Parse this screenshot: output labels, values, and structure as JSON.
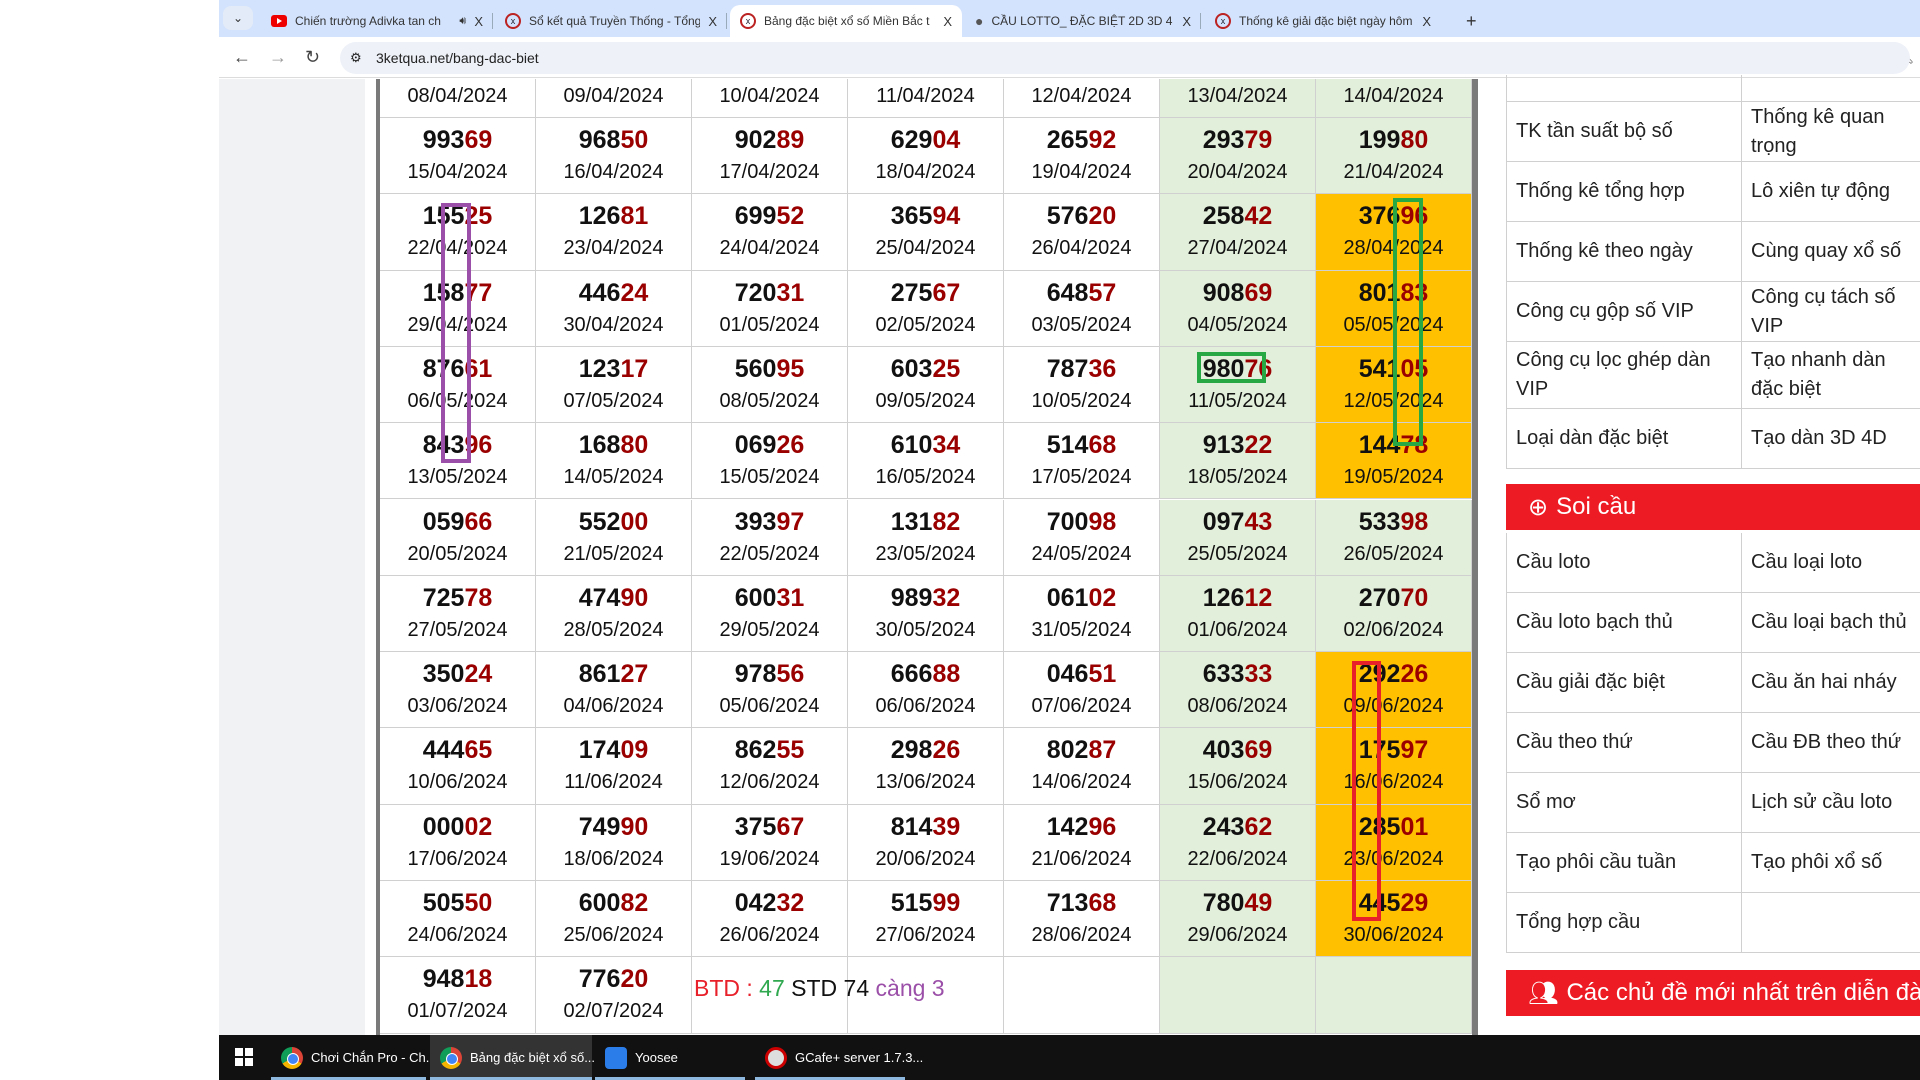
{
  "browser": {
    "tabs": [
      {
        "title": "Chiến trường Adivka tan ch",
        "icon": "youtube-icon",
        "audio": true
      },
      {
        "title": "Sổ kết quả Truyền Thống - Tổng",
        "icon": "site-x-icon"
      },
      {
        "title": "Bảng đặc biệt xổ số Miền Bắc t",
        "icon": "site-x-icon",
        "active": true
      },
      {
        "title": "CẦU LOTTO_ ĐẶC BIỆT 2D 3D 4",
        "icon": "globe-icon"
      },
      {
        "title": "Thống kê giải đặc biệt ngày hôm",
        "icon": "site-x-icon"
      }
    ],
    "close_glyph": "X",
    "new_tab_glyph": "+",
    "url": "3ketqua.net/bang-dac-biet"
  },
  "table": {
    "colors": {
      "green": "#e2efda",
      "yellow": "#ffc000",
      "tail": "#9a0000"
    },
    "header_dates": [
      "08/04/2024",
      "09/04/2024",
      "10/04/2024",
      "11/04/2024",
      "12/04/2024",
      "13/04/2024",
      "14/04/2024"
    ],
    "rows": [
      [
        [
          "99369",
          "15/04/2024"
        ],
        [
          "96850",
          "16/04/2024"
        ],
        [
          "90289",
          "17/04/2024"
        ],
        [
          "62904",
          "18/04/2024"
        ],
        [
          "26592",
          "19/04/2024"
        ],
        [
          "29379",
          "20/04/2024"
        ],
        [
          "19980",
          "21/04/2024"
        ]
      ],
      [
        [
          "15525",
          "22/04/2024"
        ],
        [
          "12681",
          "23/04/2024"
        ],
        [
          "69952",
          "24/04/2024"
        ],
        [
          "36594",
          "25/04/2024"
        ],
        [
          "57620",
          "26/04/2024"
        ],
        [
          "25842",
          "27/04/2024"
        ],
        [
          "37696",
          "28/04/2024",
          "yellow"
        ]
      ],
      [
        [
          "15877",
          "29/04/2024"
        ],
        [
          "44624",
          "30/04/2024"
        ],
        [
          "72031",
          "01/05/2024"
        ],
        [
          "27567",
          "02/05/2024"
        ],
        [
          "64857",
          "03/05/2024"
        ],
        [
          "90869",
          "04/05/2024"
        ],
        [
          "80183",
          "05/05/2024",
          "yellow"
        ]
      ],
      [
        [
          "87661",
          "06/05/2024"
        ],
        [
          "12317",
          "07/05/2024"
        ],
        [
          "56095",
          "08/05/2024"
        ],
        [
          "60325",
          "09/05/2024"
        ],
        [
          "78736",
          "10/05/2024"
        ],
        [
          "98076",
          "11/05/2024"
        ],
        [
          "54105",
          "12/05/2024",
          "yellow"
        ]
      ],
      [
        [
          "84396",
          "13/05/2024"
        ],
        [
          "16880",
          "14/05/2024"
        ],
        [
          "06926",
          "15/05/2024"
        ],
        [
          "61034",
          "16/05/2024"
        ],
        [
          "51468",
          "17/05/2024"
        ],
        [
          "91322",
          "18/05/2024"
        ],
        [
          "14478",
          "19/05/2024",
          "yellow"
        ]
      ],
      [
        [
          "05966",
          "20/05/2024"
        ],
        [
          "55200",
          "21/05/2024"
        ],
        [
          "39397",
          "22/05/2024"
        ],
        [
          "13182",
          "23/05/2024"
        ],
        [
          "70098",
          "24/05/2024"
        ],
        [
          "09743",
          "25/05/2024"
        ],
        [
          "53398",
          "26/05/2024"
        ]
      ],
      [
        [
          "72578",
          "27/05/2024"
        ],
        [
          "47490",
          "28/05/2024"
        ],
        [
          "60031",
          "29/05/2024"
        ],
        [
          "98932",
          "30/05/2024"
        ],
        [
          "06102",
          "31/05/2024"
        ],
        [
          "12612",
          "01/06/2024"
        ],
        [
          "27070",
          "02/06/2024"
        ]
      ],
      [
        [
          "35024",
          "03/06/2024"
        ],
        [
          "86127",
          "04/06/2024"
        ],
        [
          "97856",
          "05/06/2024"
        ],
        [
          "66688",
          "06/06/2024"
        ],
        [
          "04651",
          "07/06/2024"
        ],
        [
          "63333",
          "08/06/2024"
        ],
        [
          "29226",
          "09/06/2024",
          "yellow"
        ]
      ],
      [
        [
          "44465",
          "10/06/2024"
        ],
        [
          "17409",
          "11/06/2024"
        ],
        [
          "86255",
          "12/06/2024"
        ],
        [
          "29826",
          "13/06/2024"
        ],
        [
          "80287",
          "14/06/2024"
        ],
        [
          "40369",
          "15/06/2024"
        ],
        [
          "17597",
          "16/06/2024",
          "yellow"
        ]
      ],
      [
        [
          "00002",
          "17/06/2024"
        ],
        [
          "74990",
          "18/06/2024"
        ],
        [
          "37567",
          "19/06/2024"
        ],
        [
          "81439",
          "20/06/2024"
        ],
        [
          "14296",
          "21/06/2024"
        ],
        [
          "24362",
          "22/06/2024"
        ],
        [
          "28501",
          "23/06/2024",
          "yellow"
        ]
      ],
      [
        [
          "50550",
          "24/06/2024"
        ],
        [
          "60082",
          "25/06/2024"
        ],
        [
          "04232",
          "26/06/2024"
        ],
        [
          "51599",
          "27/06/2024"
        ],
        [
          "71368",
          "28/06/2024"
        ],
        [
          "78049",
          "29/06/2024"
        ],
        [
          "44529",
          "30/06/2024",
          "yellow"
        ]
      ],
      [
        [
          "94818",
          "01/07/2024"
        ],
        [
          "77620",
          "02/07/2024"
        ],
        [
          "",
          ""
        ],
        [
          "",
          ""
        ],
        [
          "",
          ""
        ],
        [
          "",
          ""
        ],
        [
          "",
          ""
        ]
      ]
    ],
    "note": {
      "part1": "BTD : ",
      "part2": "47",
      "part3": " STD 74 ",
      "part4": "càng 3",
      "colors": {
        "part1": "#e8202a",
        "part2": "#2fa84f",
        "part3": "#111111",
        "part4": "#9b4fa8"
      }
    },
    "annotation_colors": {
      "purple": "#9b4fa8",
      "green": "#28a745",
      "red": "#e8202a"
    }
  },
  "sidebar": {
    "stats_links": [
      [
        "TK tần suất bộ số",
        "Thống kê quan trọng"
      ],
      [
        "Thống kê tổng hợp",
        "Lô xiên tự động"
      ],
      [
        "Thống kê theo ngày",
        "Cùng quay xổ số"
      ],
      [
        "Công cụ gộp số VIP",
        "Công cụ tách số VIP"
      ],
      [
        "Công cụ lọc ghép dàn VIP",
        "Tạo nhanh dàn đặc biệt"
      ],
      [
        "Loại dàn đặc biệt",
        "Tạo dàn 3D 4D"
      ]
    ],
    "soi_cau_title": "Soi cầu",
    "soi_cau_links": [
      [
        "Cầu loto",
        "Cầu loại loto"
      ],
      [
        "Cầu loto bạch thủ",
        "Cầu loại bạch thủ"
      ],
      [
        "Cầu giải đặc biệt",
        "Cầu ăn hai nháy"
      ],
      [
        "Cầu theo thứ",
        "Cầu ĐB theo thứ"
      ],
      [
        "Sổ mơ",
        "Lịch sử cầu loto"
      ],
      [
        "Tạo phôi cầu tuần",
        "Tạo phôi xổ số"
      ],
      [
        "Tổng hợp cầu",
        ""
      ]
    ],
    "forum_title": "Các chủ đề mới nhất trên diễn đàn",
    "accent": "#ed1c24"
  },
  "taskbar": {
    "items": [
      {
        "label": "Chơi Chắn Pro - Ch...",
        "icon": "chrome-icon"
      },
      {
        "label": "Bảng đặc biệt xổ số...",
        "icon": "chrome-icon",
        "active": true
      },
      {
        "label": "Yoosee",
        "icon": "yoosee-icon"
      },
      {
        "label": "GCafe+ server 1.7.3...",
        "icon": "gcafe-icon"
      }
    ]
  }
}
